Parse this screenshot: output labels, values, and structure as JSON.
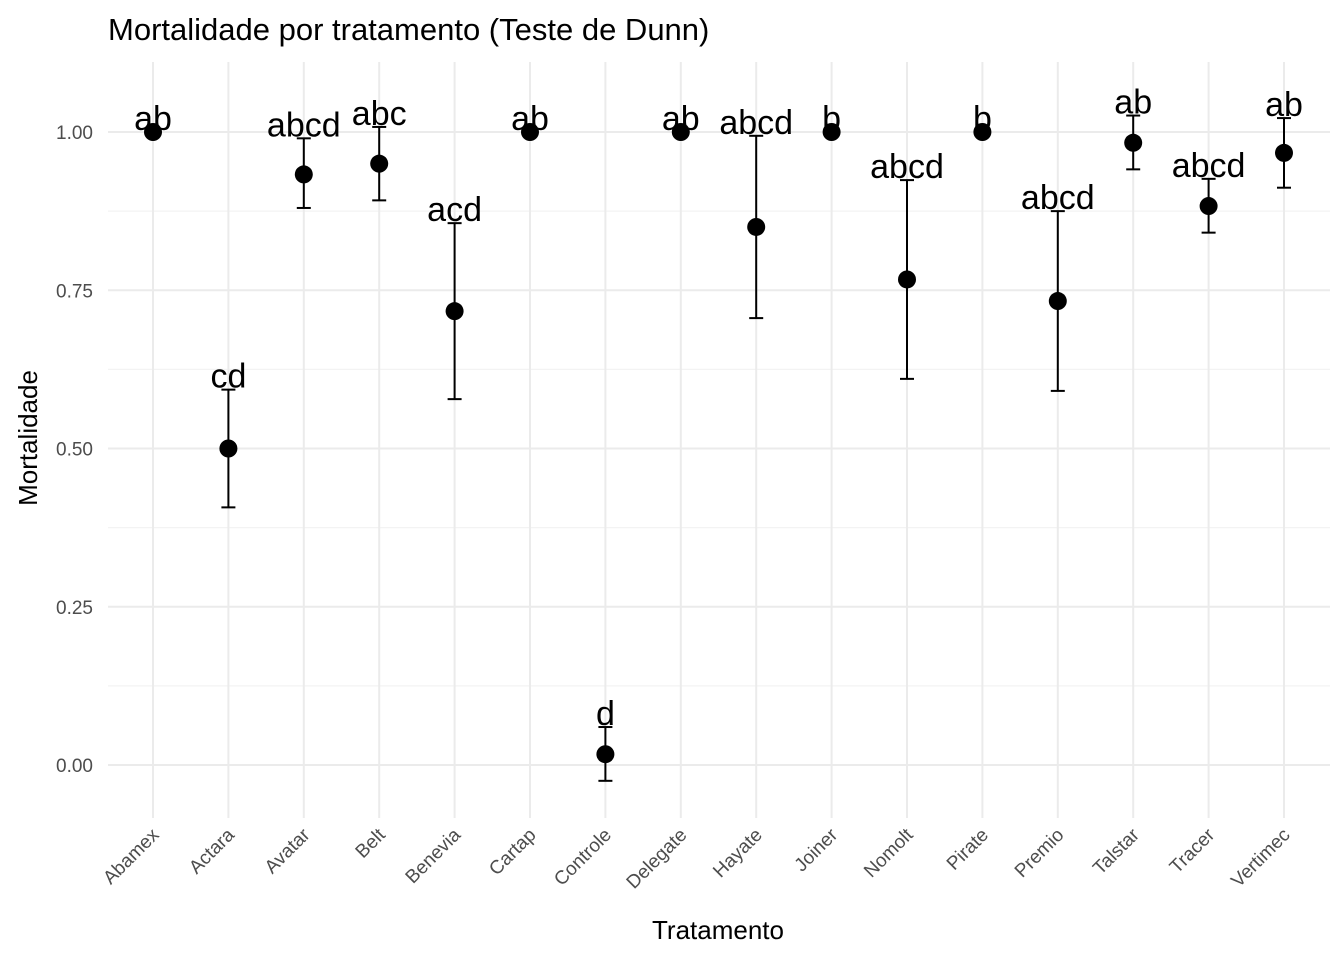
{
  "chart_data": {
    "type": "scatter",
    "title": "Mortalidade por tratamento (Teste de Dunn)",
    "xlabel": "Tratamento",
    "ylabel": "Mortalidade",
    "ylim": [
      -0.08,
      1.1
    ],
    "yticks": [
      0.0,
      0.25,
      0.5,
      0.75,
      1.0
    ],
    "ytick_labels": [
      "0.00",
      "0.25",
      "0.50",
      "0.75",
      "1.00"
    ],
    "grid": true,
    "legend": "none",
    "categories": [
      "Abamex",
      "Actara",
      "Avatar",
      "Belt",
      "Benevia",
      "Cartap",
      "Controle",
      "Delegate",
      "Hayate",
      "Joiner",
      "Nomolt",
      "Pirate",
      "Premio",
      "Talstar",
      "Tracer",
      "Vertimec"
    ],
    "series": [
      {
        "values": [
          1.0,
          0.5,
          0.933,
          0.95,
          0.717,
          1.0,
          0.017,
          1.0,
          0.85,
          1.0,
          0.767,
          1.0,
          0.733,
          0.983,
          0.883,
          0.967
        ],
        "lower": [
          1.0,
          0.407,
          0.88,
          0.892,
          0.578,
          1.0,
          -0.025,
          1.0,
          0.706,
          1.0,
          0.61,
          1.0,
          0.591,
          0.941,
          0.841,
          0.912
        ],
        "upper": [
          1.0,
          0.593,
          0.99,
          1.008,
          0.856,
          1.0,
          0.06,
          1.0,
          0.994,
          1.0,
          0.924,
          1.0,
          0.875,
          1.026,
          0.926,
          1.022
        ],
        "group_labels": [
          "ab",
          "cd",
          "abcd",
          "abc",
          "acd",
          "ab",
          "d",
          "ab",
          "abcd",
          "b",
          "abcd",
          "b",
          "abcd",
          "ab",
          "abcd",
          "ab"
        ]
      }
    ]
  }
}
